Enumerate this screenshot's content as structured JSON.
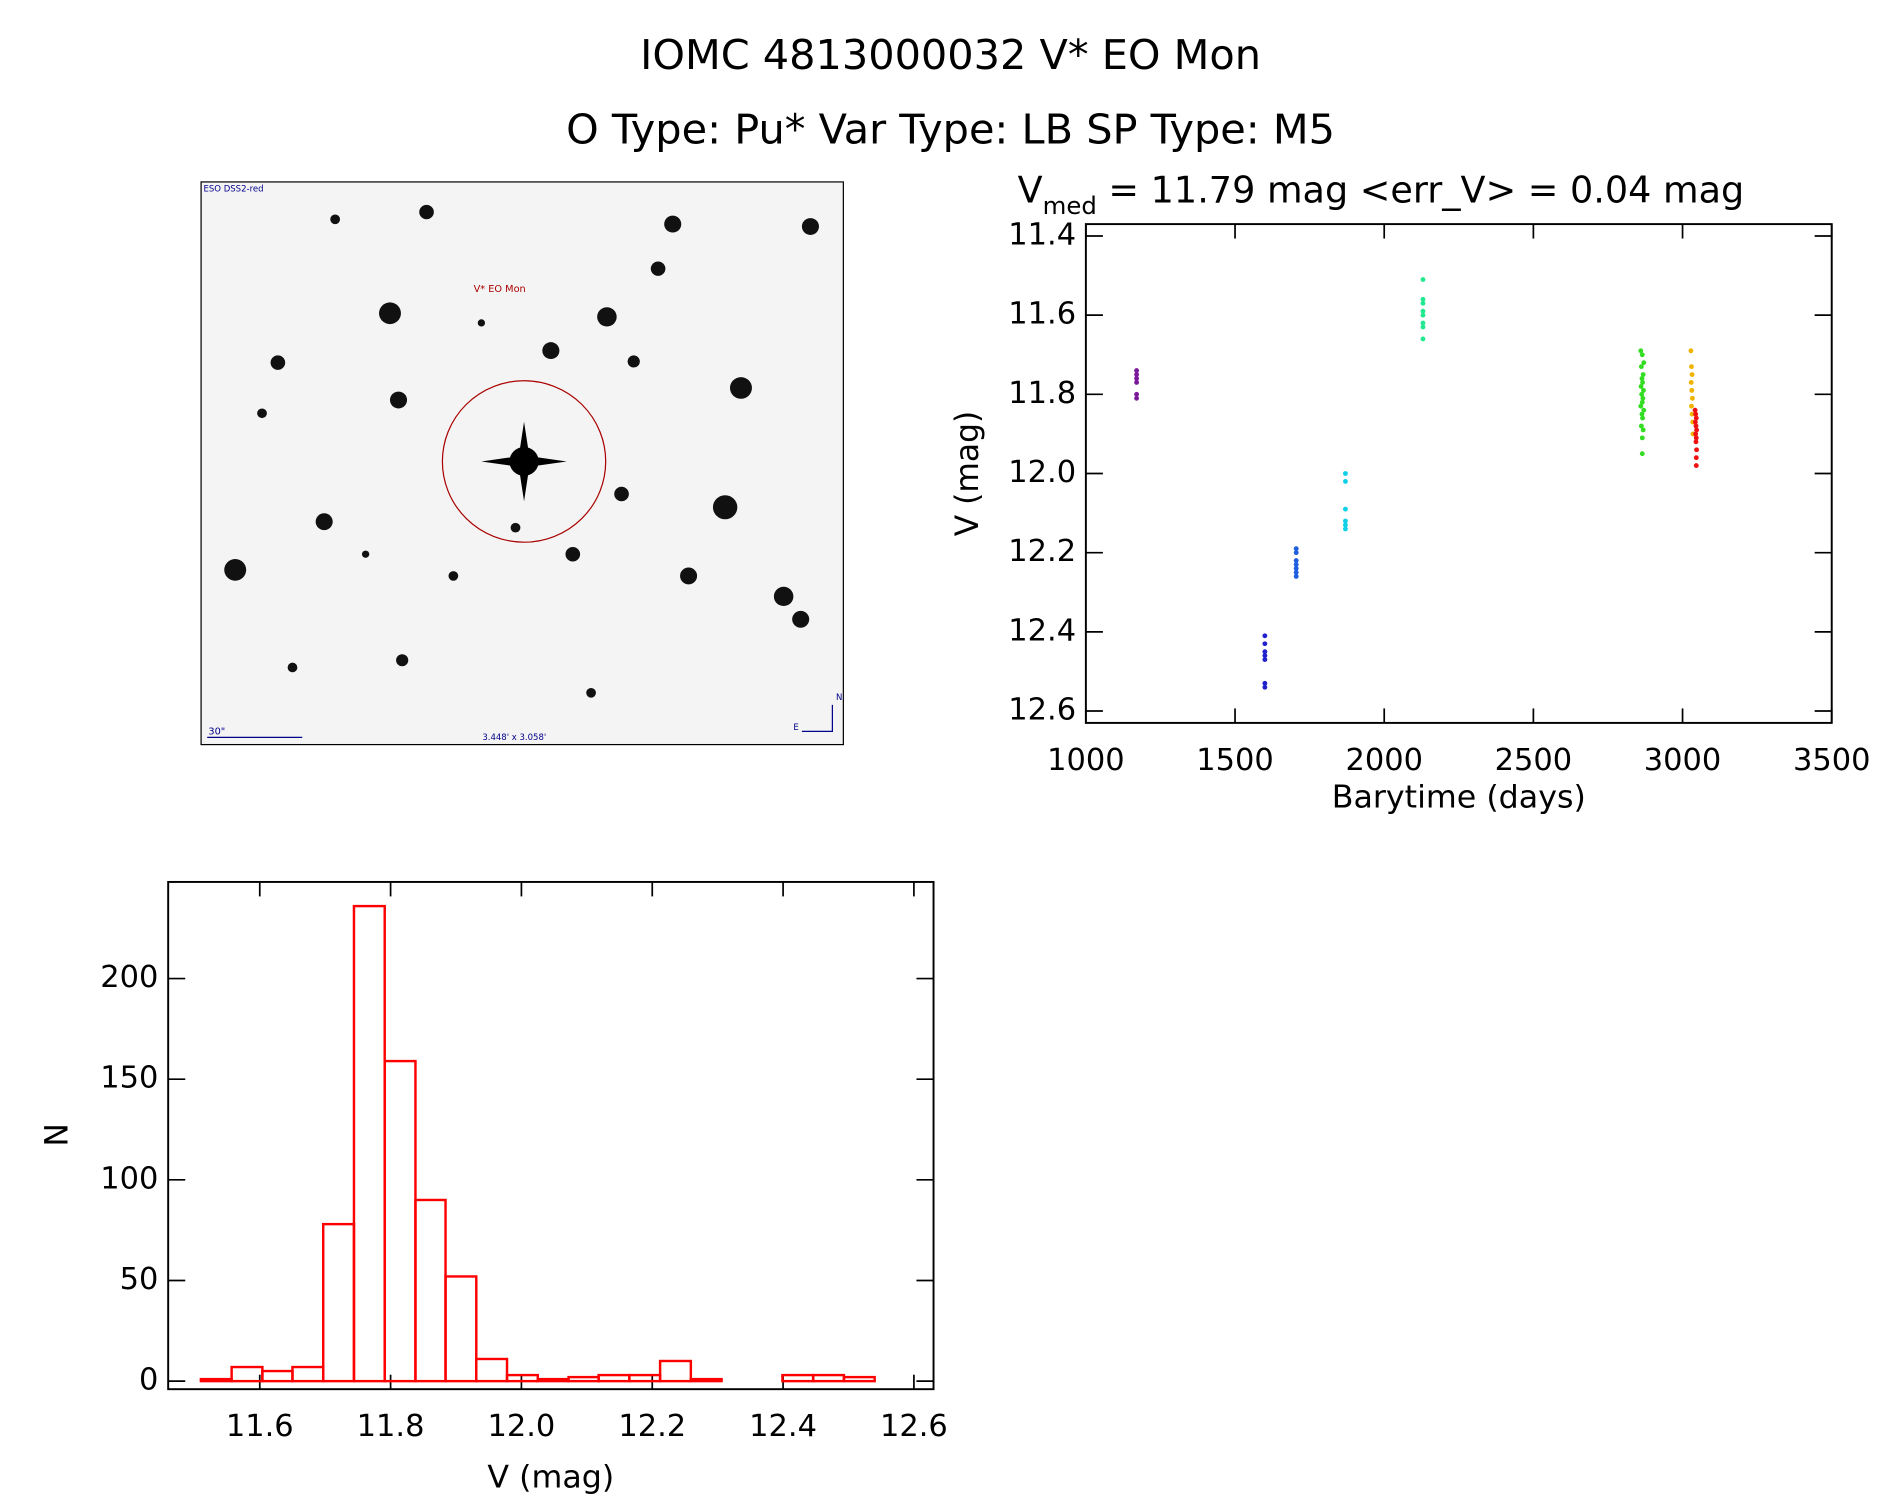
{
  "title": "IOMC 4813000032   V* EO Mon",
  "subtitle": "O Type: Pu*  Var Type: LB  SP Type: M5",
  "image_panel": {
    "survey": "ESO DSS2-red",
    "target": "V* EO Mon",
    "scale": "30\"",
    "field": "3.448' x 3.058'",
    "north": "N",
    "east": "E"
  },
  "chart_data": [
    {
      "type": "scatter",
      "title_main": "V",
      "title_sub": "med",
      "title_rest": " = 11.79 mag <err_V> = 0.04 mag",
      "xlabel": "Barytime (days)",
      "ylabel": "V (mag)",
      "xlim": [
        1000,
        3500
      ],
      "xticks": [
        1000,
        1500,
        2000,
        2500,
        3000,
        3500
      ],
      "ylim": [
        11.37,
        12.63
      ],
      "yticks": [
        11.4,
        11.6,
        11.8,
        {
          "value": 12.0,
          "label": "12.0"
        },
        12.2,
        12.4,
        12.6
      ],
      "series": [
        {
          "color": "#7a1a9a",
          "x": [
            1170,
            1170,
            1170,
            1170,
            1170,
            1170
          ],
          "y": [
            11.74,
            11.75,
            11.76,
            11.77,
            11.8,
            11.81
          ]
        },
        {
          "color": "#2222cc",
          "x": [
            1600,
            1600,
            1600,
            1600,
            1600,
            1600,
            1600
          ],
          "y": [
            12.41,
            12.43,
            12.45,
            12.46,
            12.47,
            12.53,
            12.54
          ]
        },
        {
          "color": "#1e5ee0",
          "x": [
            1705,
            1705,
            1705,
            1705,
            1705,
            1705,
            1705
          ],
          "y": [
            12.19,
            12.2,
            12.22,
            12.23,
            12.24,
            12.25,
            12.26
          ]
        },
        {
          "color": "#10d0e8",
          "x": [
            1870,
            1870,
            1870,
            1870,
            1870,
            1870
          ],
          "y": [
            12.0,
            12.02,
            12.09,
            12.12,
            12.13,
            12.14
          ]
        },
        {
          "color": "#22e890",
          "x": [
            2130,
            2130,
            2130,
            2130,
            2130,
            2130,
            2130,
            2130
          ],
          "y": [
            11.51,
            11.56,
            11.57,
            11.59,
            11.6,
            11.62,
            11.63,
            11.66
          ]
        },
        {
          "color": "#33dd22",
          "x": [
            2860,
            2865,
            2870,
            2862,
            2868,
            2864,
            2866,
            2861,
            2869,
            2863,
            2867,
            2865,
            2860,
            2870,
            2864,
            2866,
            2862,
            2868,
            2865,
            2865
          ],
          "y": [
            11.69,
            11.7,
            11.72,
            11.73,
            11.75,
            11.76,
            11.77,
            11.78,
            11.79,
            11.8,
            11.81,
            11.82,
            11.83,
            11.84,
            11.85,
            11.86,
            11.88,
            11.89,
            11.91,
            11.95
          ]
        },
        {
          "color": "#f0b400",
          "x": [
            3028,
            3030,
            3032,
            3029,
            3031,
            3033,
            3030,
            3032,
            3034,
            3035
          ],
          "y": [
            11.69,
            11.73,
            11.75,
            11.77,
            11.79,
            11.81,
            11.83,
            11.85,
            11.87,
            11.9
          ]
        },
        {
          "color": "#ee1111",
          "x": [
            3042,
            3044,
            3046,
            3043,
            3045,
            3047,
            3044,
            3046,
            3045,
            3047,
            3046,
            3046
          ],
          "y": [
            11.84,
            11.85,
            11.86,
            11.87,
            11.88,
            11.89,
            11.9,
            11.91,
            11.92,
            11.94,
            11.96,
            11.98
          ]
        }
      ]
    },
    {
      "type": "histogram",
      "xlabel": "V (mag)",
      "ylabel": "N",
      "color": "#ff0000",
      "bins": [
        11.51,
        11.557,
        11.604,
        11.65,
        11.697,
        11.744,
        11.791,
        11.838,
        11.884,
        11.931,
        11.978,
        12.025,
        12.072,
        12.118,
        12.165,
        12.212,
        12.259,
        12.306,
        12.352,
        12.399,
        12.446,
        12.493,
        12.54
      ],
      "values": [
        1,
        7,
        5,
        7,
        78,
        236,
        159,
        90,
        52,
        11,
        3,
        1,
        2,
        3,
        3,
        10,
        1,
        0,
        0,
        3,
        3,
        2
      ],
      "xlim": [
        11.46,
        12.63
      ],
      "xticks": [
        11.6,
        11.8,
        {
          "value": 12.0,
          "label": "12.0"
        },
        12.2,
        12.4,
        12.6
      ],
      "ylim": [
        -4,
        248
      ],
      "yticks": [
        0,
        50,
        100,
        150,
        200
      ]
    }
  ]
}
